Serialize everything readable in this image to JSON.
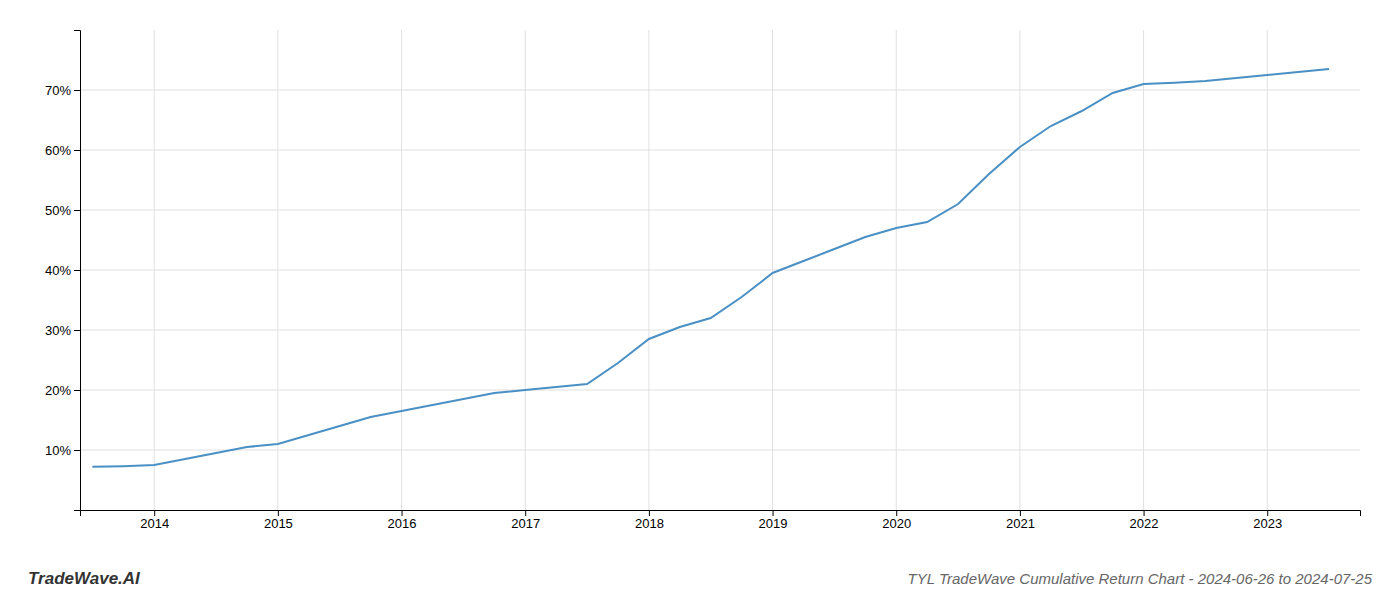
{
  "chart_data": {
    "type": "line",
    "title": "TYL TradeWave Cumulative Return Chart - 2024-06-26 to 2024-07-25",
    "annotations": [
      "TradeWave.AI"
    ],
    "x": [
      2013.5,
      2013.75,
      2014.0,
      2014.25,
      2014.5,
      2014.75,
      2015.0,
      2015.25,
      2015.5,
      2015.75,
      2016.0,
      2016.25,
      2016.5,
      2016.75,
      2017.0,
      2017.25,
      2017.5,
      2017.75,
      2018.0,
      2018.25,
      2018.5,
      2018.75,
      2019.0,
      2019.25,
      2019.5,
      2019.75,
      2020.0,
      2020.25,
      2020.5,
      2020.75,
      2021.0,
      2021.25,
      2021.5,
      2021.75,
      2022.0,
      2022.25,
      2022.5,
      2022.75,
      2023.0,
      2023.25,
      2023.5
    ],
    "values": [
      7.2,
      7.3,
      7.5,
      8.5,
      9.5,
      10.5,
      11.0,
      12.5,
      14.0,
      15.5,
      16.5,
      17.5,
      18.5,
      19.5,
      20.0,
      20.5,
      21.0,
      24.5,
      28.5,
      30.5,
      32.0,
      35.5,
      39.5,
      41.5,
      43.5,
      45.5,
      47.0,
      48.0,
      51.0,
      56.0,
      60.5,
      64.0,
      66.5,
      69.5,
      71.0,
      71.2,
      71.5,
      72.0,
      72.5,
      73.0,
      73.5
    ],
    "color": "#4a90c4",
    "xlim": [
      2013.4,
      2023.75
    ],
    "ylim": [
      0,
      80
    ],
    "xticks": [
      2014,
      2015,
      2016,
      2017,
      2018,
      2019,
      2020,
      2021,
      2022,
      2023
    ],
    "yticks": [
      {
        "value": 10,
        "label": "10%"
      },
      {
        "value": 20,
        "label": "20%"
      },
      {
        "value": 30,
        "label": "30%"
      },
      {
        "value": 40,
        "label": "40%"
      },
      {
        "value": 50,
        "label": "50%"
      },
      {
        "value": 60,
        "label": "60%"
      },
      {
        "value": 70,
        "label": "70%"
      }
    ],
    "grid": true
  }
}
